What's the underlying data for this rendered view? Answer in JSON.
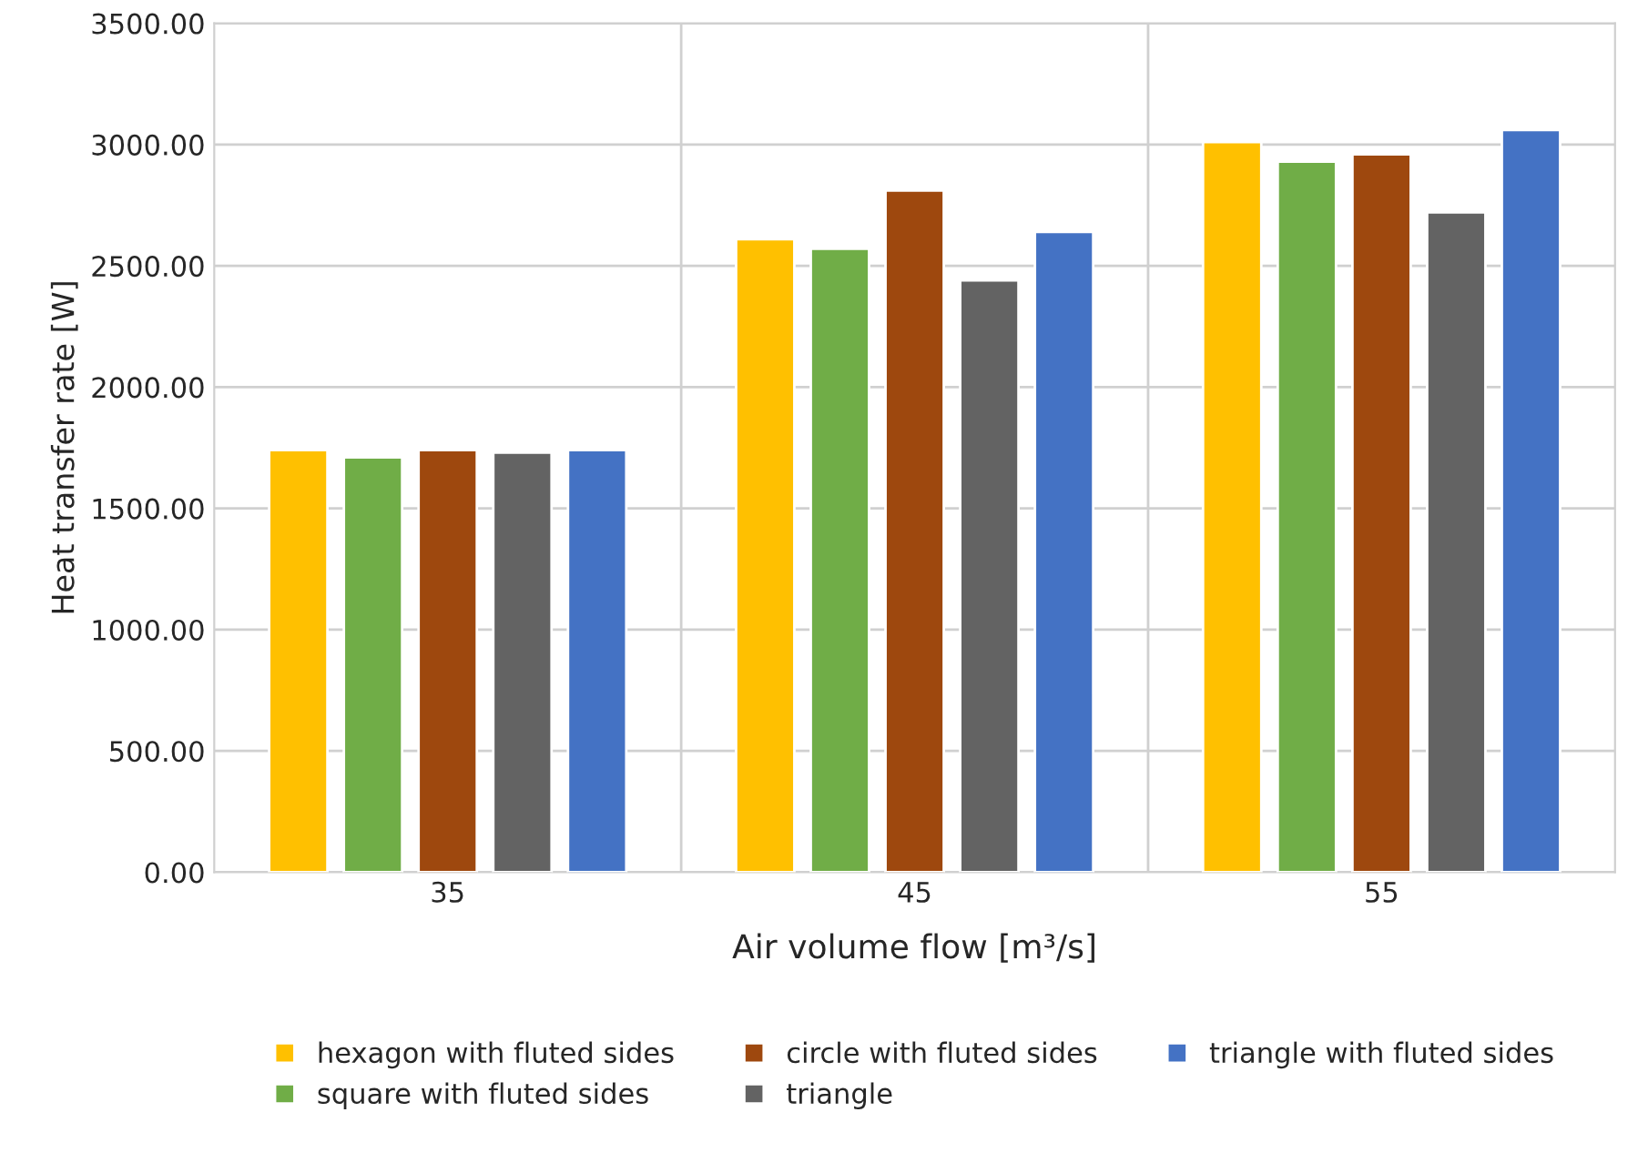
{
  "chart_data": {
    "type": "bar",
    "xlabel": "Air volume flow [m³/s]",
    "ylabel": "Heat transfer rate [W]",
    "categories": [
      "35",
      "45",
      "55"
    ],
    "series": [
      {
        "name": "hexagon with fluted sides",
        "color": "#ffc000",
        "values": [
          1740,
          2610,
          3010
        ]
      },
      {
        "name": "square with fluted sides",
        "color": "#70ad47",
        "values": [
          1710,
          2570,
          2930
        ]
      },
      {
        "name": "circle with fluted sides",
        "color": "#9e480e",
        "values": [
          1740,
          2810,
          2960
        ]
      },
      {
        "name": "triangle",
        "color": "#636363",
        "values": [
          1730,
          2440,
          2720
        ]
      },
      {
        "name": "triangle with fluted sides",
        "color": "#4472c4",
        "values": [
          1740,
          2640,
          3060
        ]
      }
    ],
    "ylim": [
      0,
      3500
    ],
    "yticks": [
      {
        "value": 0,
        "label": "0.00"
      },
      {
        "value": 500,
        "label": "500.00"
      },
      {
        "value": 1000,
        "label": "1000.00"
      },
      {
        "value": 1500,
        "label": "1500.00"
      },
      {
        "value": 2000,
        "label": "2000.00"
      },
      {
        "value": 2500,
        "label": "2500.00"
      },
      {
        "value": 3000,
        "label": "3000.00"
      },
      {
        "value": 3500,
        "label": "3500.00"
      }
    ],
    "grid": true,
    "legend": "bottom"
  }
}
